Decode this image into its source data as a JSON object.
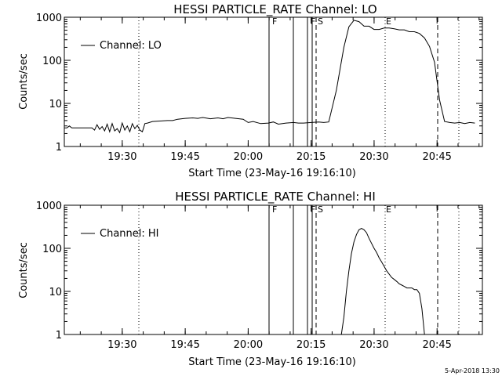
{
  "footer": {
    "timestamp": "5-Apr-2018 13:30"
  },
  "chart_data": [
    {
      "type": "line",
      "title": "HESSI PARTICLE_RATE Channel: LO",
      "xlabel": "Start Time (23-May-16 19:16:10)",
      "ylabel": "Counts/sec",
      "xlim": [
        19.27,
        20.93
      ],
      "ylim": [
        1,
        1000
      ],
      "yscale": "log",
      "x_ticks": [
        "19:30",
        "19:45",
        "20:00",
        "20:15",
        "20:30",
        "20:45"
      ],
      "y_ticks": [
        "1",
        "10",
        "100",
        "1000"
      ],
      "legend": {
        "label": "Channel: LO",
        "position": "top-left"
      },
      "markers": [
        "F",
        "F",
        "S",
        "E"
      ],
      "series": [
        {
          "name": "Channel: LO",
          "x": [
            19.27,
            19.28,
            19.29,
            19.3,
            19.31,
            19.32,
            19.33,
            19.34,
            19.35,
            19.36,
            19.37,
            19.38,
            19.39,
            19.4,
            19.41,
            19.42,
            19.43,
            19.44,
            19.45,
            19.46,
            19.47,
            19.48,
            19.49,
            19.5,
            19.51,
            19.52,
            19.53,
            19.54,
            19.55,
            19.56,
            19.57,
            19.58,
            19.59,
            19.6,
            19.62,
            19.65,
            19.68,
            19.7,
            19.72,
            19.75,
            19.78,
            19.8,
            19.82,
            19.85,
            19.88,
            19.9,
            19.92,
            19.95,
            19.98,
            20.0,
            20.02,
            20.05,
            20.08,
            20.1,
            20.12,
            20.15,
            20.18,
            20.2,
            20.22,
            20.25,
            20.28,
            20.3,
            20.32,
            20.35,
            20.38,
            20.4,
            20.42,
            20.44,
            20.46,
            20.48,
            20.5,
            20.52,
            20.54,
            20.56,
            20.58,
            20.6,
            20.62,
            20.64,
            20.66,
            20.68,
            20.7,
            20.72,
            20.74,
            20.76,
            20.78,
            20.8,
            20.82,
            20.84,
            20.86,
            20.88,
            20.9
          ],
          "y": [
            2.7,
            2.7,
            3.0,
            2.7,
            2.7,
            2.7,
            2.7,
            2.7,
            2.7,
            2.7,
            2.7,
            2.7,
            2.4,
            3.2,
            2.5,
            2.9,
            2.3,
            3.3,
            2.2,
            3.4,
            2.3,
            2.6,
            2.1,
            3.5,
            2.4,
            3.0,
            2.2,
            3.4,
            2.6,
            3.1,
            2.4,
            2.2,
            3.4,
            3.5,
            3.8,
            3.9,
            4.0,
            4.0,
            4.3,
            4.5,
            4.6,
            4.5,
            4.7,
            4.4,
            4.6,
            4.4,
            4.7,
            4.5,
            4.3,
            3.6,
            3.8,
            3.4,
            3.5,
            3.7,
            3.3,
            3.5,
            3.6,
            3.5,
            3.5,
            3.6,
            3.7,
            3.6,
            3.7,
            20,
            200,
            600,
            850,
            790,
            620,
            620,
            520,
            520,
            560,
            560,
            540,
            510,
            510,
            460,
            460,
            420,
            330,
            210,
            90,
            12,
            3.8,
            3.6,
            3.5,
            3.6,
            3.4,
            3.6,
            3.5
          ]
        }
      ]
    },
    {
      "type": "line",
      "title": "HESSI PARTICLE_RATE Channel: HI",
      "xlabel": "Start Time (23-May-16 19:16:10)",
      "ylabel": "Counts/sec",
      "xlim": [
        19.27,
        20.93
      ],
      "ylim": [
        1,
        1000
      ],
      "yscale": "log",
      "x_ticks": [
        "19:30",
        "19:45",
        "20:00",
        "20:15",
        "20:30",
        "20:45"
      ],
      "y_ticks": [
        "1",
        "10",
        "100",
        "1000"
      ],
      "legend": {
        "label": "Channel: HI",
        "position": "top-left"
      },
      "markers": [
        "F",
        "F",
        "S",
        "E"
      ],
      "series": [
        {
          "name": "Channel: HI",
          "x": [
            20.37,
            20.38,
            20.39,
            20.4,
            20.41,
            20.42,
            20.43,
            20.44,
            20.45,
            20.46,
            20.47,
            20.48,
            20.49,
            20.5,
            20.51,
            20.52,
            20.53,
            20.54,
            20.55,
            20.56,
            20.57,
            20.58,
            20.59,
            20.6,
            20.61,
            20.62,
            20.63,
            20.64,
            20.65,
            20.66,
            20.67,
            20.68,
            20.69,
            20.7,
            20.71,
            20.72,
            20.73,
            20.74
          ],
          "y": [
            1,
            2.5,
            10,
            30,
            75,
            140,
            210,
            270,
            290,
            270,
            230,
            170,
            130,
            100,
            80,
            60,
            48,
            38,
            30,
            25,
            21,
            19,
            17,
            15,
            14,
            13,
            12,
            12,
            12,
            11,
            11,
            9,
            4,
            1,
            1,
            1,
            1,
            1
          ]
        }
      ]
    }
  ]
}
